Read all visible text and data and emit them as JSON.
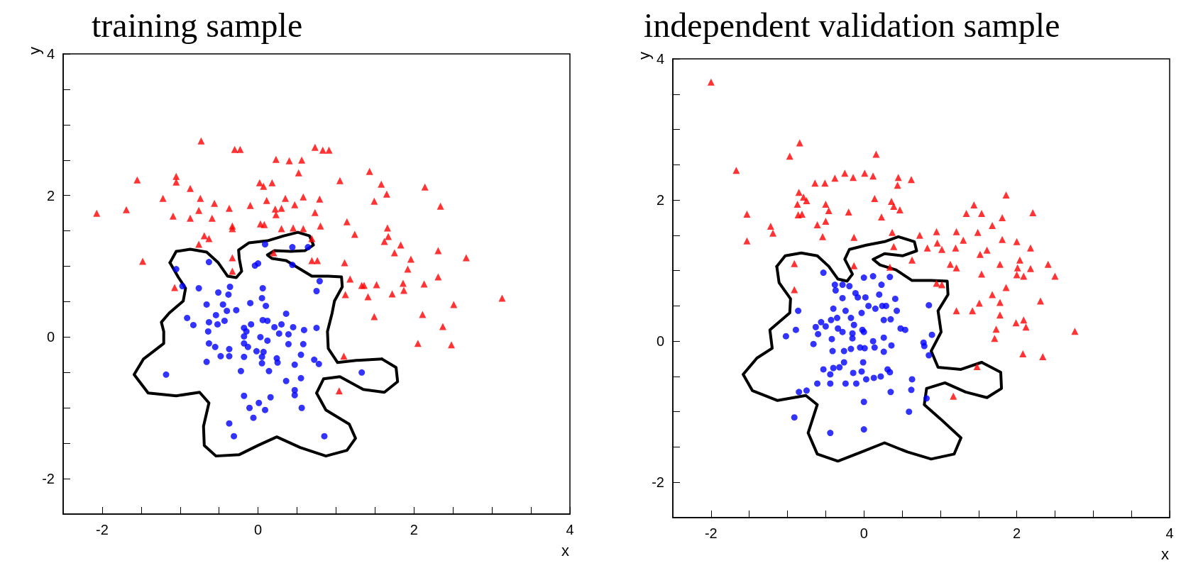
{
  "chart_data": [
    {
      "type": "scatter",
      "title": "training sample",
      "xlabel": "x",
      "ylabel": "y",
      "xlim": [
        -2.5,
        4
      ],
      "ylim": [
        -2.5,
        4
      ],
      "xticks": [
        -2,
        {
          "value": -1.5,
          "label": null
        },
        {
          "value": -1,
          "label": null
        },
        {
          "value": -0.5,
          "label": null
        },
        0,
        {
          "value": 0.5,
          "label": null
        },
        {
          "value": 1,
          "label": null
        },
        {
          "value": 1.5,
          "label": null
        },
        2,
        {
          "value": 2.5,
          "label": null
        },
        {
          "value": 3,
          "label": null
        },
        {
          "value": 3.5,
          "label": null
        },
        4
      ],
      "yticks": [
        -2,
        {
          "value": -1.5,
          "label": null
        },
        {
          "value": -1,
          "label": null
        },
        {
          "value": -0.5,
          "label": null
        },
        0,
        {
          "value": 0.5,
          "label": null
        },
        {
          "value": 1,
          "label": null
        },
        {
          "value": 1.5,
          "label": null
        },
        2,
        {
          "value": 2.5,
          "label": null
        },
        {
          "value": 3,
          "label": null
        },
        {
          "value": 3.5,
          "label": null
        },
        4
      ],
      "series": [
        {
          "type": "scatter",
          "color": "#ff0000",
          "marker": "triangle",
          "x": [
            -0.73,
            -0.3,
            -0.23,
            0.73,
            0.83,
            0.91,
            0.23,
            0.4,
            0.56,
            0.52,
            1.43,
            1.05,
            1.58,
            1.65,
            2.14,
            2.34,
            1.49,
            -1.55,
            -1.05,
            -1.05,
            -0.87,
            -1.22,
            -0.74,
            -0.56,
            -0.37,
            -0.1,
            0.02,
            0.07,
            0.18,
            0.11,
            0.35,
            0.58,
            0.79,
            0.47,
            0.22,
            0.3,
            0.23,
            0.73,
            -2.07,
            -1.69,
            -1.09,
            -0.87,
            -0.76,
            -0.59,
            -0.33,
            -0.33,
            0.03,
            0.08,
            0.3,
            0.45,
            0.58,
            0.8,
            1.14,
            1.24,
            1.66,
            1.67,
            1.62,
            1.83,
            1.75,
            1.96,
            2.31,
            2.67,
            1.92,
            2.31,
            1.86,
            1.87,
            2.13,
            2.51,
            3.13,
            1.11,
            1.18,
            1.33,
            1.36,
            1.52,
            1.41,
            1.72,
            1.12,
            1.49,
            2.11,
            -0.69,
            -0.63,
            -0.76,
            -1.48,
            -0.33,
            -0.33,
            0.69,
            0.2,
            0.69,
            0.76,
            -1.07,
            2.05,
            2.48,
            2.37,
            1.1,
            1.04
          ],
          "values": [
            2.77,
            2.65,
            2.65,
            2.68,
            2.64,
            2.64,
            2.51,
            2.49,
            2.5,
            2.32,
            2.34,
            2.21,
            2.16,
            2.02,
            2.12,
            1.85,
            1.92,
            2.22,
            2.27,
            2.19,
            2.1,
            1.96,
            1.96,
            1.89,
            1.82,
            1.86,
            2.18,
            2.13,
            2.18,
            1.93,
            1.96,
            1.98,
            1.95,
            1.87,
            1.81,
            1.82,
            1.73,
            1.76,
            1.75,
            1.8,
            1.71,
            1.68,
            1.79,
            1.68,
            1.53,
            1.57,
            1.6,
            1.59,
            1.53,
            1.54,
            1.53,
            1.57,
            1.63,
            1.45,
            1.54,
            1.42,
            1.35,
            1.3,
            1.19,
            1.1,
            1.22,
            1.12,
            0.96,
            0.85,
            0.76,
            0.66,
            0.75,
            0.46,
            0.55,
            1.05,
            0.82,
            0.73,
            0.73,
            0.74,
            0.57,
            0.61,
            0.6,
            0.29,
            0.32,
            1.43,
            1.39,
            1.31,
            1.07,
            1.12,
            0.93,
            1.39,
            1.19,
            1.08,
            1.08,
            0.7,
            -0.09,
            -0.11,
            0.15,
            -0.27,
            -0.76
          ]
        },
        {
          "type": "scatter",
          "color": "#0000ff",
          "marker": "circle",
          "x": [
            -1.05,
            -0.63,
            -0.97,
            -0.76,
            -0.51,
            -0.36,
            -0.38,
            0.06,
            0.05,
            0.1,
            -0.1,
            -0.66,
            -0.45,
            -0.4,
            -0.28,
            -0.54,
            -0.91,
            -0.83,
            -0.63,
            -0.52,
            -0.43,
            -0.64,
            -0.63,
            -0.55,
            -0.48,
            -0.37,
            -0.37,
            -0.66,
            -0.18,
            -0.15,
            -0.09,
            -0.18,
            -0.18,
            -0.13,
            -0.18,
            -0.22,
            0.06,
            0.12,
            0.03,
            0.12,
            -0.02,
            0.07,
            0.05,
            0.05,
            0.14,
            0.24,
            0.25,
            0.36,
            0.21,
            0.3,
            0.27,
            0.39,
            0.45,
            0.39,
            0.59,
            0.75,
            0.58,
            0.55,
            0.47,
            0.36,
            0.55,
            0.47,
            0.47,
            0.56,
            0.72,
            0.78,
            0.75,
            0.79,
            1.33,
            -1.18,
            -0.18,
            0.16,
            0.01,
            -0.11,
            0.09,
            -0.06,
            -0.37,
            -0.31,
            0.85,
            -0.04,
            0.0,
            0.44,
            0.09,
            0.44,
            0.64
          ],
          "values": [
            0.96,
            1.06,
            0.72,
            0.69,
            0.63,
            0.71,
            0.6,
            0.69,
            0.55,
            0.44,
            0.48,
            0.46,
            0.46,
            0.37,
            0.38,
            0.31,
            0.27,
            0.17,
            0.21,
            0.18,
            0.23,
            0.08,
            -0.09,
            -0.14,
            -0.27,
            -0.17,
            -0.27,
            -0.35,
            0.13,
            0.08,
            0.18,
            0.01,
            -0.09,
            -0.14,
            -0.28,
            -0.48,
            0.24,
            0.23,
            0.0,
            -0.05,
            -0.2,
            -0.21,
            -0.28,
            -0.37,
            -0.48,
            -0.3,
            -0.36,
            0.33,
            0.14,
            0.18,
            0.05,
            0.04,
            0.14,
            -0.1,
            0.1,
            0.13,
            -0.1,
            -0.25,
            -0.39,
            -0.62,
            -0.58,
            -0.75,
            -0.82,
            -1.0,
            -0.32,
            -0.38,
            0.65,
            0.79,
            -0.5,
            -0.53,
            -0.83,
            -0.85,
            -0.93,
            -1.0,
            -1.03,
            -1.14,
            -1.22,
            -1.4,
            -1.4,
            1.01,
            1.04,
            1.02,
            1.31,
            1.27,
            1.27
          ]
        },
        {
          "type": "line",
          "color": "#000000",
          "marker": "none",
          "line_style": "solid",
          "x": [
            -1.13,
            -1.05,
            -0.87,
            -0.66,
            -0.51,
            -0.39,
            -0.28,
            -0.21,
            -0.24,
            -0.25,
            -0.12,
            0.12,
            0.33,
            0.51,
            0.66,
            0.71,
            0.6,
            0.42,
            0.21,
            0.12,
            0.18,
            0.36,
            0.54,
            0.69,
            0.9,
            1.07,
            1.08,
            0.98,
            0.95,
            0.89,
            0.9,
            1.02,
            1.26,
            1.59
          ],
          "values": [
            1.05,
            1.21,
            1.24,
            1.2,
            1.05,
            0.86,
            0.84,
            0.93,
            1.1,
            1.23,
            1.33,
            1.36,
            1.43,
            1.48,
            1.43,
            1.3,
            1.22,
            1.21,
            1.22,
            1.16,
            1.11,
            1.08,
            0.96,
            0.86,
            0.86,
            0.85,
            0.71,
            0.51,
            0.34,
            0.08,
            -0.16,
            -0.36,
            -0.33,
            -0.31
          ]
        },
        {
          "type": "line",
          "color": "#000000",
          "marker": "none",
          "line_style": "solid",
          "x": [
            1.59,
            1.77,
            1.79,
            1.62,
            1.35,
            1.05,
            0.84,
            0.75,
            0.87,
            1.17,
            1.25,
            1.14,
            0.87,
            0.54,
            0.24,
            0.0,
            -0.24,
            -0.54,
            -0.69,
            -0.7,
            -0.63,
            -0.75,
            -1.05,
            -1.41,
            -1.59,
            -1.47,
            -1.21,
            -1.21,
            -1.24,
            -1.14,
            -0.96,
            -0.93,
            -1.02,
            -1.13
          ],
          "values": [
            -0.31,
            -0.43,
            -0.63,
            -0.78,
            -0.74,
            -0.56,
            -0.59,
            -0.79,
            -1.03,
            -1.23,
            -1.43,
            -1.6,
            -1.68,
            -1.56,
            -1.41,
            -1.53,
            -1.66,
            -1.68,
            -1.53,
            -1.26,
            -0.93,
            -0.78,
            -0.83,
            -0.79,
            -0.53,
            -0.31,
            -0.09,
            0.08,
            0.21,
            0.34,
            0.51,
            0.69,
            0.84,
            1.05
          ]
        }
      ]
    },
    {
      "type": "scatter",
      "title": "independent validation sample",
      "xlabel": "x",
      "ylabel": "y",
      "xlim": [
        -2.5,
        4
      ],
      "ylim": [
        -2.5,
        4
      ],
      "xticks": [
        -2,
        {
          "value": -1.5,
          "label": null
        },
        {
          "value": -1,
          "label": null
        },
        {
          "value": -0.5,
          "label": null
        },
        0,
        {
          "value": 0.5,
          "label": null
        },
        {
          "value": 1,
          "label": null
        },
        {
          "value": 1.5,
          "label": null
        },
        2,
        {
          "value": 2.5,
          "label": null
        },
        {
          "value": 3,
          "label": null
        },
        {
          "value": 3.5,
          "label": null
        },
        4
      ],
      "yticks": [
        -2,
        {
          "value": -1.5,
          "label": null
        },
        {
          "value": -1,
          "label": null
        },
        {
          "value": -0.5,
          "label": null
        },
        0,
        {
          "value": 0.5,
          "label": null
        },
        {
          "value": 1,
          "label": null
        },
        {
          "value": 1.5,
          "label": null
        },
        2,
        {
          "value": 2.5,
          "label": null
        },
        {
          "value": 3,
          "label": null
        },
        {
          "value": 3.5,
          "label": null
        },
        4
      ],
      "series": [
        {
          "type": "scatter",
          "color": "#ff0000",
          "marker": "triangle",
          "x": [
            -2.0,
            -0.84,
            -0.97,
            -1.67,
            0.16,
            -0.64,
            -0.51,
            -0.38,
            -0.25,
            -0.14,
            0.01,
            0.12,
            0.45,
            0.62,
            0.44,
            -0.85,
            -0.79,
            -0.75,
            -0.87,
            -0.5,
            -0.46,
            -0.2,
            0.14,
            0.36,
            0.39,
            0.47,
            0.23,
            -0.86,
            -0.81,
            -1.53,
            -0.61,
            -0.5,
            -1.22,
            -1.19,
            -1.53,
            -0.54,
            -0.13,
            0.37,
            0.73,
            0.95,
            1.21,
            1.3,
            1.49,
            1.86,
            1.44,
            1.34,
            1.54,
            1.81,
            2.21,
            1.68,
            1.81,
            2.0,
            2.18,
            0.83,
            0.96,
            1.02,
            1.2,
            1.52,
            1.61,
            0.39,
            0.63,
            1.13,
            1.21,
            1.78,
            2.04,
            2.01,
            2.18,
            2.41,
            2.5,
            2.0,
            2.09,
            1.54,
            1.86,
            -0.91,
            -0.13,
            0.34,
            -0.91,
            0.95,
            1.02,
            1.68,
            1.78,
            1.51,
            1.21,
            1.42,
            2.31,
            1.78,
            1.99,
            2.09,
            2.12,
            1.73,
            1.71,
            2.76,
            2.08,
            2.34,
            1.48,
            1.17
          ],
          "values": [
            3.67,
            2.81,
            2.62,
            2.42,
            2.65,
            2.24,
            2.24,
            2.31,
            2.38,
            2.32,
            2.38,
            2.34,
            2.32,
            2.29,
            2.21,
            2.11,
            2.04,
            1.99,
            1.94,
            1.94,
            1.85,
            1.83,
            2.02,
            1.98,
            1.91,
            1.86,
            1.76,
            1.79,
            1.8,
            1.8,
            1.65,
            1.7,
            1.63,
            1.53,
            1.42,
            1.48,
            1.47,
            1.54,
            1.5,
            1.55,
            1.55,
            1.43,
            1.54,
            2.07,
            1.93,
            1.81,
            1.81,
            1.75,
            1.82,
            1.64,
            1.44,
            1.41,
            1.32,
            1.32,
            1.39,
            1.3,
            1.32,
            1.23,
            1.29,
            1.34,
            1.15,
            1.09,
            1.04,
            1.09,
            1.15,
            1.04,
            1.03,
            1.09,
            0.92,
            0.94,
            0.92,
            0.95,
            0.76,
            1.1,
            1.07,
            1.05,
            0.73,
            0.82,
            0.8,
            0.66,
            0.55,
            0.54,
            0.43,
            0.43,
            0.57,
            0.37,
            0.26,
            0.3,
            0.2,
            0.17,
            0.04,
            0.14,
            -0.18,
            -0.22,
            -0.36,
            -0.78
          ]
        },
        {
          "type": "scatter",
          "color": "#0000ff",
          "marker": "circle",
          "x": [
            -0.53,
            -0.38,
            -0.37,
            -0.28,
            -0.19,
            -0.11,
            -0.08,
            0.02,
            0.0,
            0.12,
            0.34,
            0.23,
            0.2,
            -0.28,
            0.41,
            0.06,
            0.15,
            0.24,
            0.29,
            0.43,
            -0.03,
            -0.24,
            -0.4,
            -0.35,
            -0.43,
            -0.56,
            -0.5,
            -0.63,
            -0.6,
            -0.34,
            -0.28,
            -0.17,
            -0.13,
            -0.15,
            -0.15,
            -0.02,
            0.0,
            0.26,
            0.35,
            0.48,
            0.54,
            0.85,
            0.89,
            0.78,
            0.79,
            0.85,
            0.26,
            0.36,
            0.26,
            0.12,
            0.14,
            0.01,
            -0.05,
            -0.17,
            -0.26,
            -0.41,
            -0.42,
            -0.66,
            -0.86,
            -0.89,
            -1.02,
            -0.26,
            -0.32,
            -0.4,
            -0.53,
            -0.44,
            -0.01,
            -0.03,
            -0.14,
            0.03,
            0.13,
            0.22,
            0.31,
            0.34,
            0.63,
            0.62,
            0.35,
            0.82,
            0.0,
            0.59,
            -0.61,
            -0.44,
            -0.24,
            -0.1,
            -0.75,
            -0.85,
            -0.91,
            -0.44,
            0.0
          ],
          "values": [
            0.97,
            0.8,
            0.72,
            0.8,
            0.78,
            0.68,
            0.62,
            0.62,
            0.9,
            0.92,
            0.91,
            0.8,
            0.66,
            0.61,
            0.6,
            0.5,
            0.46,
            0.5,
            0.5,
            0.43,
            0.4,
            0.43,
            0.46,
            0.33,
            0.3,
            0.27,
            0.21,
            0.2,
            0.1,
            0.18,
            0.13,
            0.33,
            0.23,
            0.11,
            0.04,
            0.16,
            0.13,
            0.3,
            0.31,
            0.18,
            0.16,
            0.51,
            0.09,
            -0.02,
            -0.07,
            -0.2,
            0.05,
            -0.06,
            -0.15,
            0.0,
            -0.09,
            -0.1,
            -0.09,
            -0.11,
            -0.14,
            -0.14,
            0.03,
            -0.04,
            0.43,
            0.16,
            0.07,
            -0.3,
            -0.37,
            -0.38,
            -0.4,
            -0.47,
            -0.3,
            -0.43,
            -0.45,
            -0.54,
            -0.52,
            -0.5,
            -0.4,
            -0.44,
            -0.54,
            -0.69,
            -0.72,
            -0.81,
            -0.86,
            -1.0,
            -0.6,
            -0.6,
            -0.6,
            -0.6,
            -0.7,
            -0.72,
            -1.08,
            -1.3,
            -1.25
          ]
        },
        {
          "type": "line",
          "color": "#000000",
          "marker": "none",
          "line_style": "solid",
          "x": [
            -1.14,
            -1.03,
            -0.82,
            -0.61,
            -0.46,
            -0.34,
            -0.22,
            -0.15,
            -0.25,
            -0.19,
            0.03,
            0.27,
            0.45,
            0.66,
            0.69,
            0.51,
            0.27,
            0.12,
            0.21,
            0.42,
            0.63,
            0.88,
            1.09,
            1.1,
            0.97,
            1.01,
            0.88,
            0.97,
            1.27,
            1.54
          ],
          "values": [
            1.06,
            1.21,
            1.25,
            1.21,
            1.06,
            0.88,
            0.85,
            0.95,
            1.16,
            1.3,
            1.36,
            1.41,
            1.48,
            1.41,
            1.28,
            1.21,
            1.24,
            1.16,
            1.08,
            1.01,
            0.86,
            0.86,
            0.85,
            0.66,
            0.43,
            0.13,
            -0.14,
            -0.37,
            -0.4,
            -0.3
          ]
        },
        {
          "type": "line",
          "color": "#000000",
          "marker": "none",
          "line_style": "solid",
          "x": [
            1.54,
            1.79,
            1.8,
            1.61,
            1.33,
            1.06,
            0.82,
            0.79,
            1.0,
            1.27,
            1.18,
            0.88,
            0.57,
            0.27,
            -0.03,
            -0.34,
            -0.61,
            -0.73,
            -0.61,
            -0.76,
            -1.13,
            -1.46,
            -1.58,
            -1.4,
            -1.2,
            -1.23,
            -0.97,
            -0.96,
            -1.11,
            -1.14
          ],
          "values": [
            -0.3,
            -0.44,
            -0.67,
            -0.8,
            -0.72,
            -0.59,
            -0.67,
            -0.9,
            -1.1,
            -1.37,
            -1.6,
            -1.67,
            -1.57,
            -1.44,
            -1.57,
            -1.7,
            -1.6,
            -1.3,
            -0.9,
            -0.77,
            -0.84,
            -0.7,
            -0.47,
            -0.24,
            -0.1,
            0.16,
            0.4,
            0.6,
            0.83,
            1.06
          ]
        }
      ]
    }
  ]
}
